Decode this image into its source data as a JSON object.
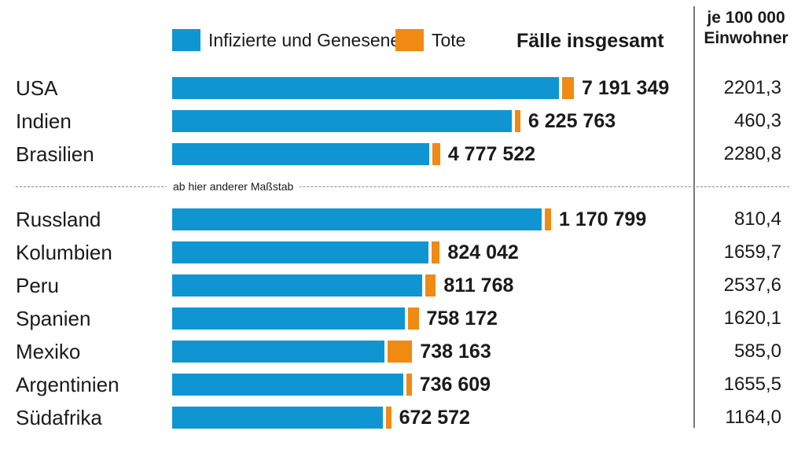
{
  "legend": {
    "infected_label": "Infizierte und Genesene",
    "deaths_label": "Tote"
  },
  "header": {
    "total_label": "Fälle insgesamt",
    "per_capita_line1": "je 100 000",
    "per_capita_line2": "Einwohner"
  },
  "separator_label": "ab hier anderer Maßstab",
  "colors": {
    "infected": "#0f96d2",
    "deaths": "#f08a12",
    "text": "#1a1a1a"
  },
  "chart_data": {
    "type": "bar",
    "orientation": "horizontal",
    "stacked": true,
    "series_names": [
      "Infizierte und Genesene",
      "Tote"
    ],
    "scale_note": "ab hier anderer Maßstab",
    "groups": [
      {
        "rows": [
          {
            "country": "USA",
            "total": 7191349,
            "total_label": "7 191 349",
            "per_100k": "2201,3",
            "deaths_share": 0.029
          },
          {
            "country": "Indien",
            "total": 6225763,
            "total_label": "6 225 763",
            "per_100k": "460,3",
            "deaths_share": 0.016
          },
          {
            "country": "Brasilien",
            "total": 4777522,
            "total_label": "4 777 522",
            "per_100k": "2280,8",
            "deaths_share": 0.03
          }
        ]
      },
      {
        "rows": [
          {
            "country": "Russland",
            "total": 1170799,
            "total_label": "1 170 799",
            "per_100k": "810,4",
            "deaths_share": 0.017
          },
          {
            "country": "Kolumbien",
            "total": 824042,
            "total_label": "824 042",
            "per_100k": "1659,7",
            "deaths_share": 0.031
          },
          {
            "country": "Peru",
            "total": 811768,
            "total_label": "811 768",
            "per_100k": "2537,6",
            "deaths_share": 0.04
          },
          {
            "country": "Spanien",
            "total": 758172,
            "total_label": "758 172",
            "per_100k": "1620,1",
            "deaths_share": 0.043
          },
          {
            "country": "Mexiko",
            "total": 738163,
            "total_label": "738 163",
            "per_100k": "585,0",
            "deaths_share": 0.105
          },
          {
            "country": "Argentinien",
            "total": 736609,
            "total_label": "736 609",
            "per_100k": "1655,5",
            "deaths_share": 0.023
          },
          {
            "country": "Südafrika",
            "total": 672572,
            "total_label": "672 572",
            "per_100k": "1164,0",
            "deaths_share": 0.025
          }
        ]
      }
    ]
  }
}
